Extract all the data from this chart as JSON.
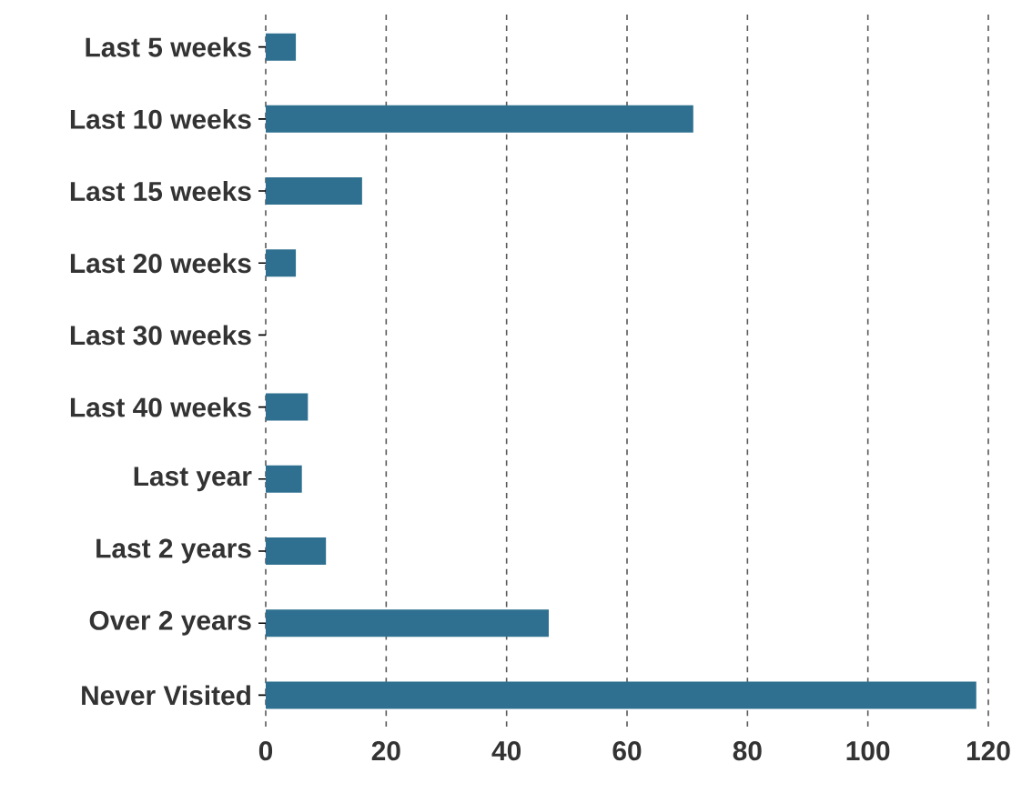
{
  "chart_data": {
    "type": "bar",
    "orientation": "horizontal",
    "categories": [
      "Last 5 weeks",
      "Last 10 weeks",
      "Last 15 weeks",
      "Last 20 weeks",
      "Last 30 weeks",
      "Last 40 weeks",
      "Last year",
      "Last 2 years",
      "Over 2 years",
      "Never Visited"
    ],
    "values": [
      5,
      71,
      16,
      5,
      0,
      7,
      6,
      10,
      47,
      118
    ],
    "color": "#2f7090",
    "xlim": [
      0,
      120
    ],
    "xticks": [
      0,
      20,
      40,
      60,
      80,
      100,
      120
    ],
    "grid": "x"
  }
}
